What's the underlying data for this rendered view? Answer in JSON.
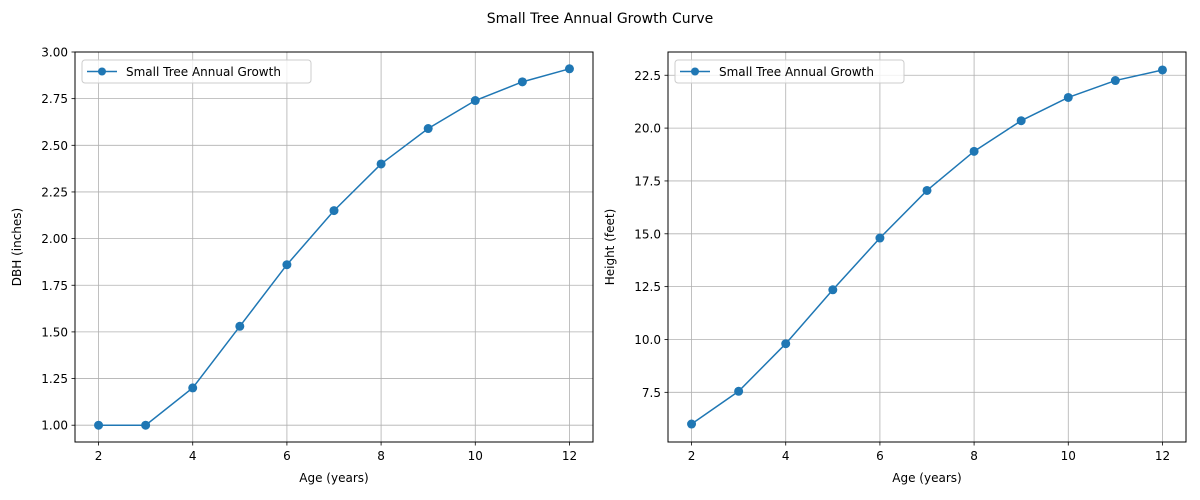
{
  "suptitle": "Small Tree Annual Growth Curve",
  "chart_data": [
    {
      "type": "line",
      "title": "",
      "xlabel": "Age (years)",
      "ylabel": "DBH (inches)",
      "xlim": [
        1.5,
        12.5
      ],
      "ylim": [
        0.91,
        3.0
      ],
      "xticks": [
        2,
        4,
        6,
        8,
        10,
        12
      ],
      "yticks": [
        1.0,
        1.25,
        1.5,
        1.75,
        2.0,
        2.25,
        2.5,
        2.75,
        3.0
      ],
      "ytick_labels": [
        "1.00",
        "1.25",
        "1.50",
        "1.75",
        "2.00",
        "2.25",
        "2.50",
        "2.75",
        "3.00"
      ],
      "grid": true,
      "legend_position": "top-left",
      "series": [
        {
          "name": "Small Tree Annual Growth",
          "color": "#1f77b4",
          "marker": "circle",
          "x": [
            2,
            3,
            4,
            5,
            6,
            7,
            8,
            9,
            10,
            11,
            12
          ],
          "y": [
            1.0,
            1.0,
            1.2,
            1.53,
            1.86,
            2.15,
            2.4,
            2.59,
            2.74,
            2.84,
            2.91
          ]
        }
      ]
    },
    {
      "type": "line",
      "title": "",
      "xlabel": "Age (years)",
      "ylabel": "Height (feet)",
      "xlim": [
        1.5,
        12.5
      ],
      "ylim": [
        5.15,
        23.6
      ],
      "xticks": [
        2,
        4,
        6,
        8,
        10,
        12
      ],
      "yticks": [
        7.5,
        10.0,
        12.5,
        15.0,
        17.5,
        20.0,
        22.5
      ],
      "ytick_labels": [
        "7.5",
        "10.0",
        "12.5",
        "15.0",
        "17.5",
        "20.0",
        "22.5"
      ],
      "grid": true,
      "legend_position": "top-left",
      "series": [
        {
          "name": "Small Tree Annual Growth",
          "color": "#1f77b4",
          "marker": "circle",
          "x": [
            2,
            3,
            4,
            5,
            6,
            7,
            8,
            9,
            10,
            11,
            12
          ],
          "y": [
            6.0,
            7.55,
            9.8,
            12.35,
            14.8,
            17.05,
            18.9,
            20.35,
            21.45,
            22.25,
            22.75
          ]
        }
      ]
    }
  ]
}
